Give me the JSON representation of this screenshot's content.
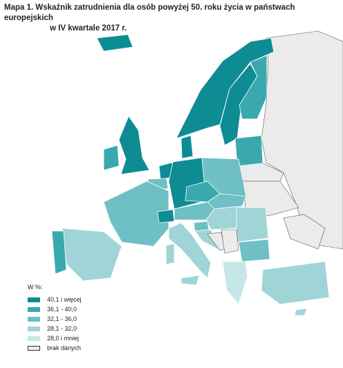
{
  "title_lines": [
    "Mapa 1. Wskaźnik zatrudnienia dla osób powyżej 50. roku życia w państwach europejskich",
    "w IV kwartale 2017 r."
  ],
  "legend": {
    "title": "W %:",
    "items": [
      {
        "label": "40,1 i więcej",
        "color": "#0e8c94"
      },
      {
        "label": "36,1 - 40,0",
        "color": "#3aa9af"
      },
      {
        "label": "32,1 - 36,0",
        "color": "#6ec0c5"
      },
      {
        "label": "28,1 - 32,0",
        "color": "#9fd5d7"
      },
      {
        "label": "28,0 i mniej",
        "color": "#c6e7e8"
      },
      {
        "label": "brak danych",
        "color": "#ebebeb"
      }
    ]
  }
}
